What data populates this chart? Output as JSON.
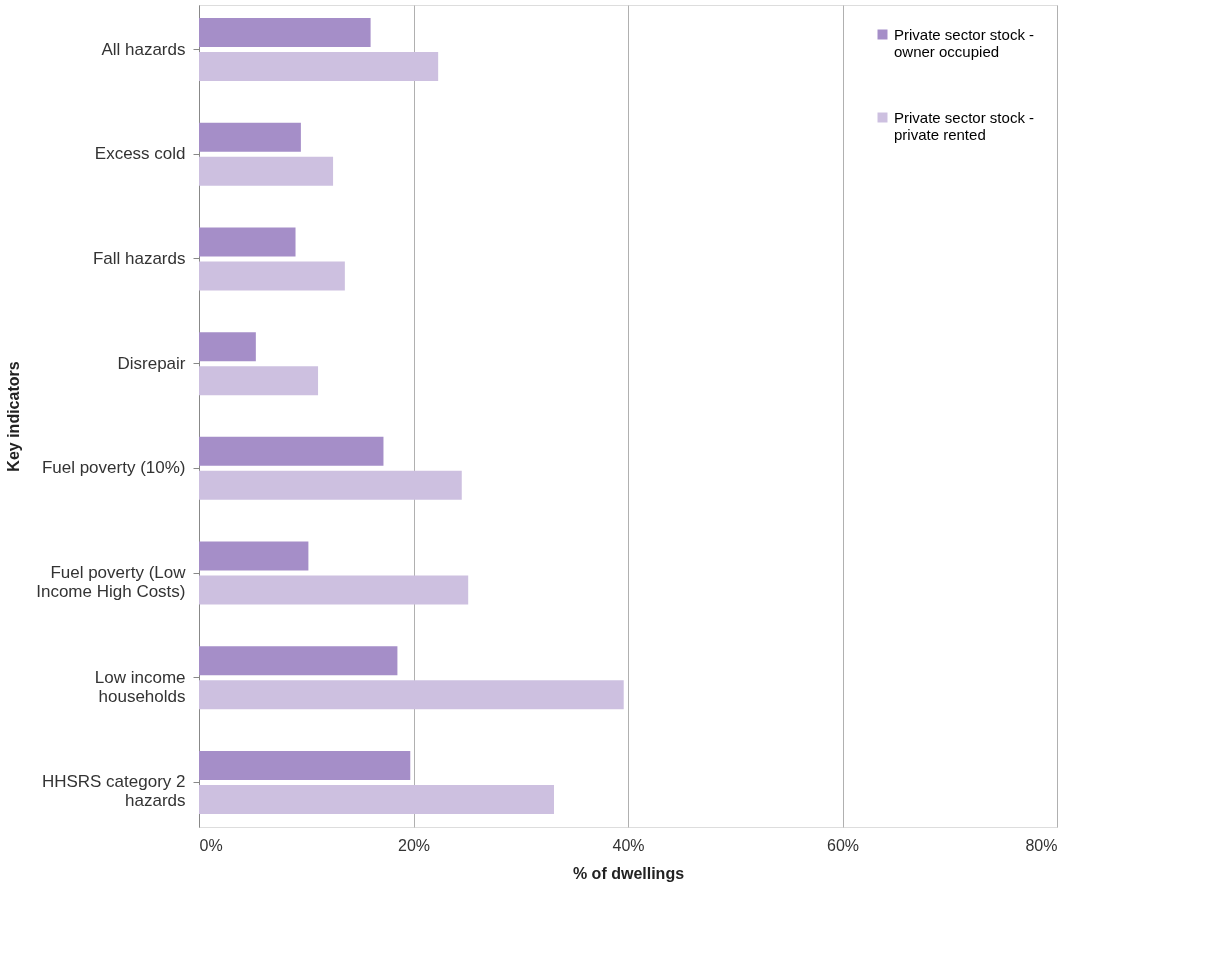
{
  "chart_data": {
    "type": "bar",
    "orientation": "horizontal",
    "xlabel": "% of dwellings",
    "ylabel": "Key indicators",
    "categories": [
      "All hazards",
      "Excess cold",
      "Fall hazards",
      "Disrepair",
      "Fuel poverty (10%)",
      "Fuel poverty (Low Income High Costs)",
      "Low income households",
      "HHSRS category 2 hazards"
    ],
    "series": [
      {
        "name": "Private sector stock - owner occupied",
        "color": "#a58ec8",
        "values": [
          16.0,
          9.5,
          9.0,
          5.3,
          17.2,
          10.2,
          18.5,
          19.7
        ]
      },
      {
        "name": "Private sector stock - private rented",
        "color": "#cdc0e0",
        "values": [
          22.3,
          12.5,
          13.6,
          11.1,
          24.5,
          25.1,
          39.6,
          33.1
        ]
      }
    ],
    "xlim": [
      0,
      80
    ],
    "xticks": [
      {
        "value": 0,
        "label": "0%"
      },
      {
        "value": 20,
        "label": "20%"
      },
      {
        "value": 40,
        "label": "40%"
      },
      {
        "value": 60,
        "label": "60%"
      },
      {
        "value": 80,
        "label": "80%"
      }
    ],
    "grid": "x",
    "legend": "top right"
  }
}
